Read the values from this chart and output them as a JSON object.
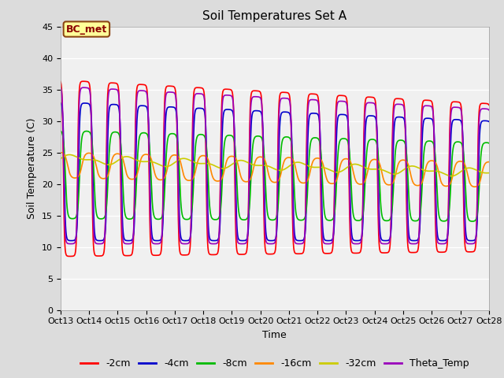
{
  "title": "Soil Temperatures Set A",
  "xlabel": "Time",
  "ylabel": "Soil Temperature (C)",
  "ylim": [
    0,
    45
  ],
  "series": [
    {
      "name": "-2cm",
      "color": "#FF0000",
      "lw": 1.2
    },
    {
      "name": "-4cm",
      "color": "#0000CC",
      "lw": 1.2
    },
    {
      "name": "-8cm",
      "color": "#00BB00",
      "lw": 1.2
    },
    {
      "name": "-16cm",
      "color": "#FF8800",
      "lw": 1.2
    },
    {
      "name": "-32cm",
      "color": "#CCCC00",
      "lw": 1.2
    },
    {
      "name": "Theta_Temp",
      "color": "#9900BB",
      "lw": 1.2
    }
  ],
  "x_tick_labels": [
    "Oct 13",
    "Oct 14",
    "Oct 15",
    "Oct 16",
    "Oct 17",
    "Oct 18",
    "Oct 19",
    "Oct 20",
    "Oct 21",
    "Oct 22",
    "Oct 23",
    "Oct 24",
    "Oct 25",
    "Oct 26",
    "Oct 27",
    "Oct 28"
  ],
  "annotation_text": "BC_met",
  "bg_color": "#DCDCDC",
  "plot_bg_color": "#F0F0F0",
  "legend_fontsize": 9,
  "title_fontsize": 11
}
